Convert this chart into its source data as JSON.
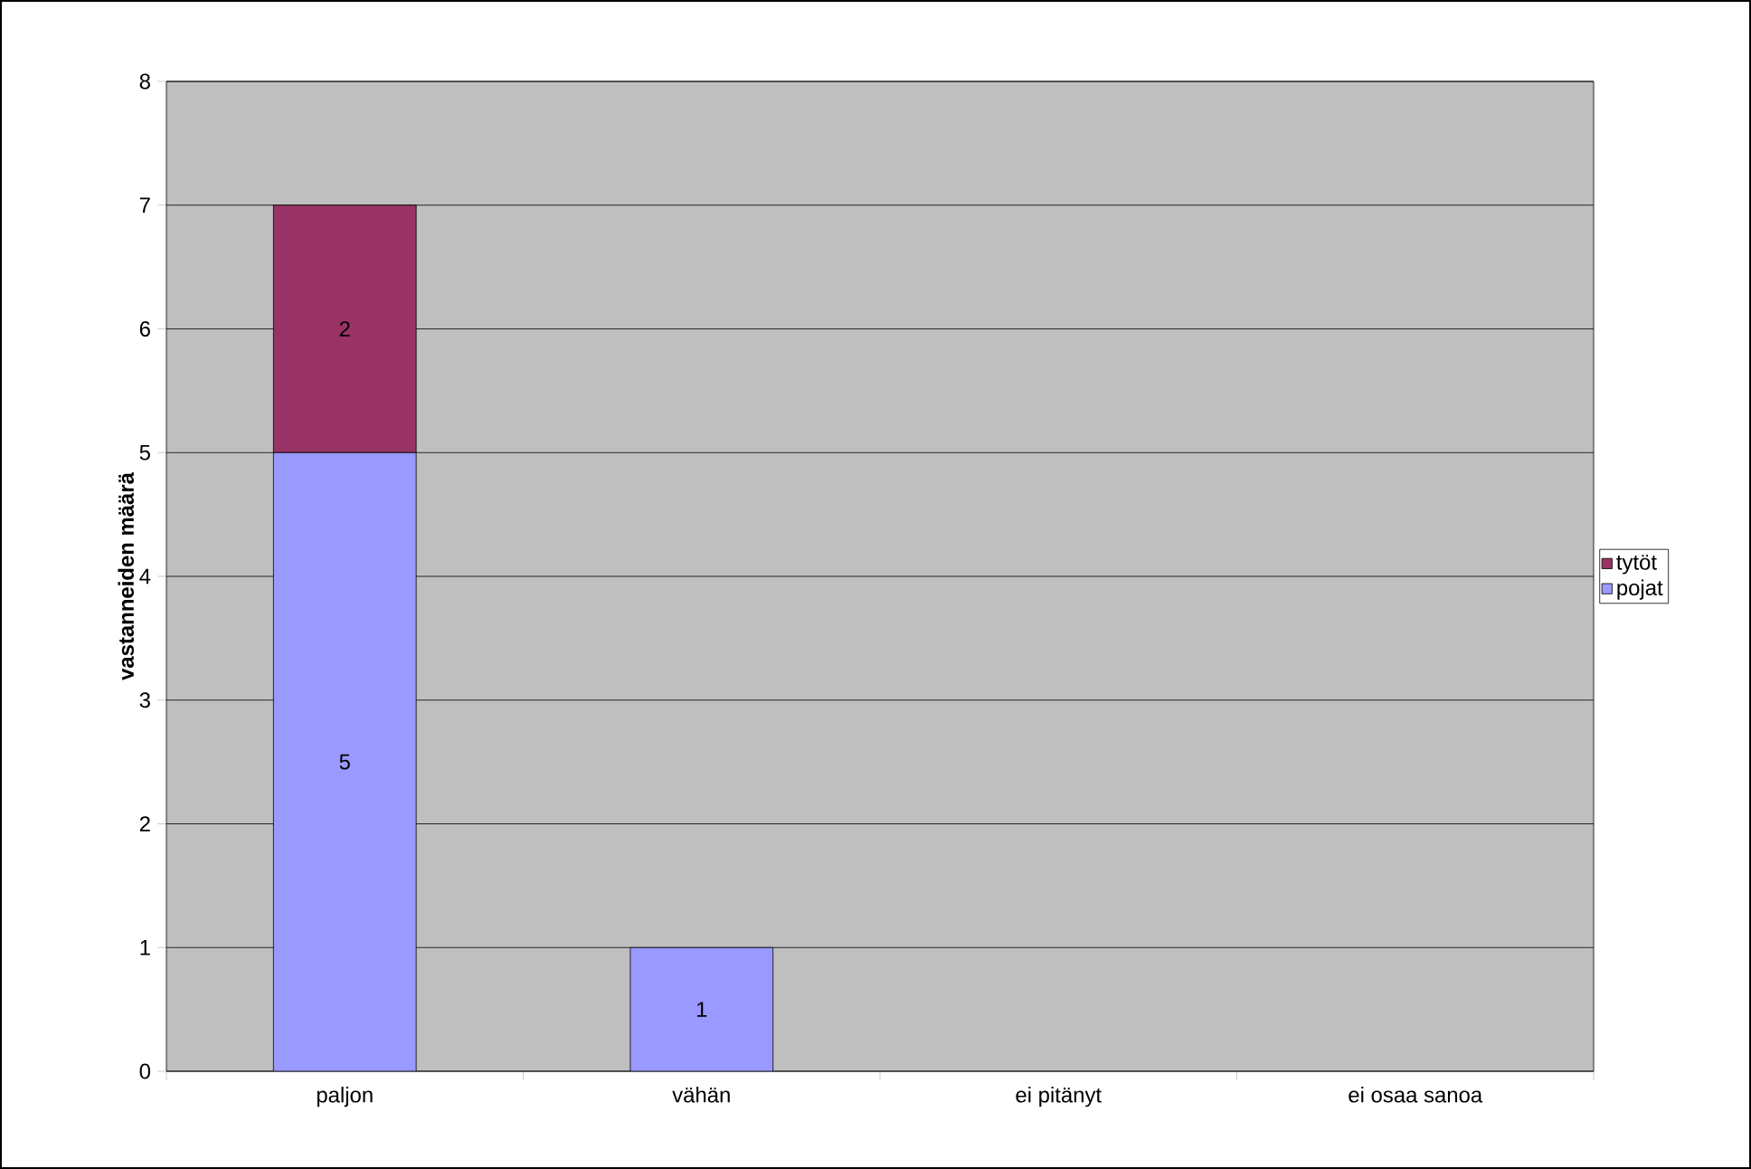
{
  "chart_data": {
    "type": "bar",
    "stacked": true,
    "ylabel": "vastanneiden määrä",
    "categories": [
      "paljon",
      "vähän",
      "ei pitänyt",
      "ei osaa sanoa"
    ],
    "series": [
      {
        "name": "pojat",
        "color": "#9999ff",
        "values": [
          5,
          1,
          0,
          0
        ],
        "value_labels": [
          "5",
          "1",
          null,
          null
        ]
      },
      {
        "name": "tytöt",
        "color": "#993366",
        "values": [
          2,
          0,
          0,
          0
        ],
        "value_labels": [
          "2",
          null,
          null,
          null
        ]
      }
    ],
    "ylim": [
      0,
      8
    ],
    "yticks": [
      0,
      1,
      2,
      3,
      4,
      5,
      6,
      7,
      8
    ],
    "grid": "y",
    "legend": "right"
  }
}
